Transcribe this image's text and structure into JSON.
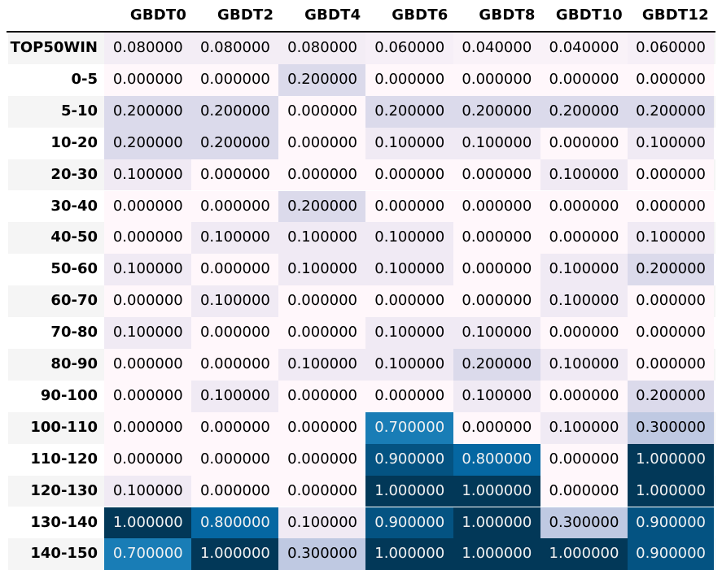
{
  "chart_data": {
    "type": "table",
    "columns": [
      "GBDT0",
      "GBDT2",
      "GBDT4",
      "GBDT6",
      "GBDT8",
      "GBDT10",
      "GBDT12"
    ],
    "rows": [
      "TOP50WIN",
      "0-5",
      "5-10",
      "10-20",
      "20-30",
      "30-40",
      "40-50",
      "50-60",
      "60-70",
      "70-80",
      "80-90",
      "90-100",
      "100-110",
      "110-120",
      "120-130",
      "130-140",
      "140-150"
    ],
    "values": [
      [
        "0.080000",
        "0.080000",
        "0.080000",
        "0.060000",
        "0.040000",
        "0.040000",
        "0.060000"
      ],
      [
        "0.000000",
        "0.000000",
        "0.200000",
        "0.000000",
        "0.000000",
        "0.000000",
        "0.000000"
      ],
      [
        "0.200000",
        "0.200000",
        "0.000000",
        "0.200000",
        "0.200000",
        "0.200000",
        "0.200000"
      ],
      [
        "0.200000",
        "0.200000",
        "0.000000",
        "0.100000",
        "0.100000",
        "0.000000",
        "0.100000"
      ],
      [
        "0.100000",
        "0.000000",
        "0.000000",
        "0.000000",
        "0.000000",
        "0.100000",
        "0.000000"
      ],
      [
        "0.000000",
        "0.000000",
        "0.200000",
        "0.000000",
        "0.000000",
        "0.000000",
        "0.000000"
      ],
      [
        "0.000000",
        "0.100000",
        "0.100000",
        "0.100000",
        "0.000000",
        "0.000000",
        "0.100000"
      ],
      [
        "0.100000",
        "0.000000",
        "0.100000",
        "0.100000",
        "0.000000",
        "0.100000",
        "0.200000"
      ],
      [
        "0.000000",
        "0.100000",
        "0.000000",
        "0.000000",
        "0.000000",
        "0.100000",
        "0.000000"
      ],
      [
        "0.100000",
        "0.000000",
        "0.000000",
        "0.100000",
        "0.100000",
        "0.000000",
        "0.000000"
      ],
      [
        "0.000000",
        "0.000000",
        "0.100000",
        "0.100000",
        "0.200000",
        "0.100000",
        "0.000000"
      ],
      [
        "0.000000",
        "0.100000",
        "0.000000",
        "0.000000",
        "0.100000",
        "0.000000",
        "0.200000"
      ],
      [
        "0.000000",
        "0.000000",
        "0.000000",
        "0.700000",
        "0.000000",
        "0.100000",
        "0.300000"
      ],
      [
        "0.000000",
        "0.000000",
        "0.000000",
        "0.900000",
        "0.800000",
        "0.000000",
        "1.000000"
      ],
      [
        "0.100000",
        "0.000000",
        "0.000000",
        "1.000000",
        "1.000000",
        "0.000000",
        "1.000000"
      ],
      [
        "1.000000",
        "0.800000",
        "0.100000",
        "0.900000",
        "1.000000",
        "0.300000",
        "0.900000"
      ],
      [
        "0.700000",
        "1.000000",
        "0.300000",
        "1.000000",
        "1.000000",
        "1.000000",
        "0.900000"
      ]
    ],
    "colormap": "PuBu",
    "color_scale": {
      "low": "#fff7fb",
      "high": "#023858"
    },
    "striped_rows": true
  }
}
